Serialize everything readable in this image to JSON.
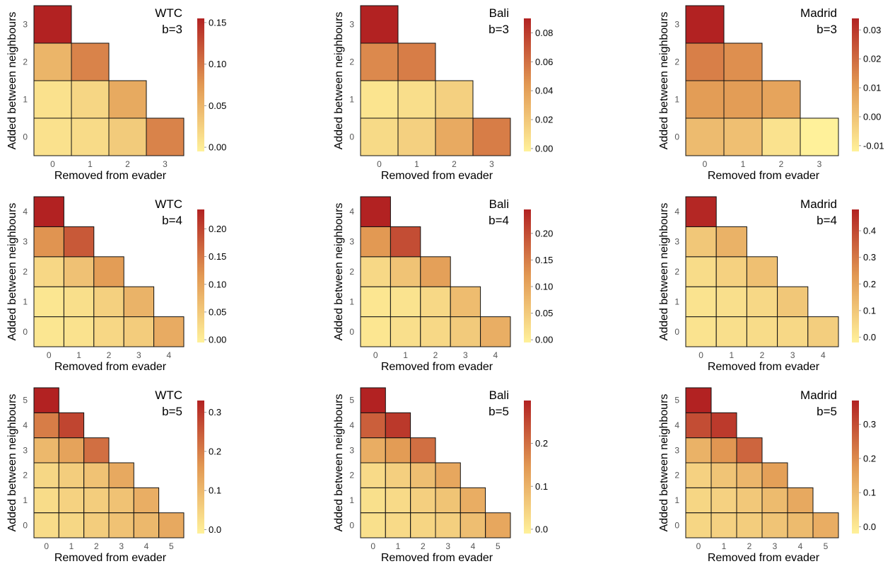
{
  "figure": {
    "xlabel": "Removed from evader",
    "ylabel": "Added between neighbours",
    "colors": {
      "low": "#fff19a",
      "mid": "#e29953",
      "high": "#b22222",
      "cell_border": "#111111"
    }
  },
  "chart_data": [
    {
      "type": "heatmap",
      "network": "WTC",
      "budget_label": "b=3",
      "b": 3,
      "xlabel": "Removed from evader",
      "ylabel": "Added between neighbours",
      "x_ticks": [
        "0",
        "1",
        "2",
        "3"
      ],
      "y_ticks": [
        "0",
        "1",
        "2",
        "3"
      ],
      "colorbar": {
        "min": -0.005,
        "max": 0.155,
        "ticks": [
          0.0,
          0.05,
          0.1,
          0.15
        ],
        "tick_labels": [
          "0.00",
          "0.05",
          "0.10",
          "0.15"
        ]
      },
      "rows": [
        [
          0.01,
          0.015,
          0.03,
          0.09
        ],
        [
          0.01,
          0.02,
          0.06
        ],
        [
          0.05,
          0.09
        ],
        [
          0.155
        ]
      ]
    },
    {
      "type": "heatmap",
      "network": "Bali",
      "budget_label": "b=3",
      "b": 3,
      "xlabel": "Removed from evader",
      "ylabel": "Added between neighbours",
      "x_ticks": [
        "0",
        "1",
        "2",
        "3"
      ],
      "y_ticks": [
        "0",
        "1",
        "2",
        "3"
      ],
      "colorbar": {
        "min": -0.002,
        "max": 0.09,
        "ticks": [
          0.0,
          0.02,
          0.04,
          0.06,
          0.08
        ],
        "tick_labels": [
          "0.00",
          "0.02",
          "0.04",
          "0.06",
          "0.08"
        ]
      },
      "rows": [
        [
          0.01,
          0.015,
          0.035,
          0.055
        ],
        [
          0.005,
          0.008,
          0.015
        ],
        [
          0.05,
          0.055
        ],
        [
          0.09
        ]
      ]
    },
    {
      "type": "heatmap",
      "network": "Madrid",
      "budget_label": "b=3",
      "b": 3,
      "xlabel": "Removed from evader",
      "ylabel": "Added between neighbours",
      "x_ticks": [
        "0",
        "1",
        "2",
        "3"
      ],
      "y_ticks": [
        "0",
        "1",
        "2",
        "3"
      ],
      "colorbar": {
        "min": -0.012,
        "max": 0.034,
        "ticks": [
          -0.01,
          0.0,
          0.01,
          0.02,
          0.03
        ],
        "tick_labels": [
          "-0.01",
          "0.00",
          "0.01",
          "0.02",
          "0.03"
        ]
      },
      "rows": [
        [
          0.002,
          0.001,
          -0.008,
          -0.012
        ],
        [
          0.01,
          0.01,
          0.008
        ],
        [
          0.016,
          0.013
        ],
        [
          0.034
        ]
      ]
    },
    {
      "type": "heatmap",
      "network": "WTC",
      "budget_label": "b=4",
      "b": 4,
      "xlabel": "Removed from evader",
      "ylabel": "Added between neighbours",
      "x_ticks": [
        "0",
        "1",
        "2",
        "3",
        "4"
      ],
      "y_ticks": [
        "0",
        "1",
        "2",
        "3",
        "4"
      ],
      "colorbar": {
        "min": -0.005,
        "max": 0.235,
        "ticks": [
          0.0,
          0.05,
          0.1,
          0.15,
          0.2
        ],
        "tick_labels": [
          "0.00",
          "0.05",
          "0.10",
          "0.15",
          "0.20"
        ]
      },
      "rows": [
        [
          0.01,
          0.015,
          0.03,
          0.045,
          0.09
        ],
        [
          0.01,
          0.02,
          0.04,
          0.08
        ],
        [
          0.03,
          0.06,
          0.11
        ],
        [
          0.12,
          0.18
        ],
        [
          0.235
        ]
      ]
    },
    {
      "type": "heatmap",
      "network": "Bali",
      "budget_label": "b=4",
      "b": 4,
      "xlabel": "Removed from evader",
      "ylabel": "Added between neighbours",
      "x_ticks": [
        "0",
        "1",
        "2",
        "3",
        "4"
      ],
      "y_ticks": [
        "0",
        "1",
        "2",
        "3",
        "4"
      ],
      "colorbar": {
        "min": -0.005,
        "max": 0.245,
        "ticks": [
          0.0,
          0.05,
          0.1,
          0.15,
          0.2
        ],
        "tick_labels": [
          "0.00",
          "0.05",
          "0.10",
          "0.15",
          "0.20"
        ]
      },
      "rows": [
        [
          0.01,
          0.02,
          0.03,
          0.05,
          0.09
        ],
        [
          0.01,
          0.015,
          0.03,
          0.07
        ],
        [
          0.03,
          0.06,
          0.11
        ],
        [
          0.12,
          0.2
        ],
        [
          0.245
        ]
      ]
    },
    {
      "type": "heatmap",
      "network": "Madrid",
      "budget_label": "b=4",
      "b": 4,
      "xlabel": "Removed from evader",
      "ylabel": "Added between neighbours",
      "x_ticks": [
        "0",
        "1",
        "2",
        "3",
        "4"
      ],
      "y_ticks": [
        "0",
        "1",
        "2",
        "3",
        "4"
      ],
      "colorbar": {
        "min": -0.02,
        "max": 0.48,
        "ticks": [
          0.0,
          0.1,
          0.2,
          0.3,
          0.4
        ],
        "tick_labels": [
          "0.0",
          "0.1",
          "0.2",
          "0.3",
          "0.4"
        ]
      },
      "rows": [
        [
          0.02,
          0.03,
          0.04,
          0.05,
          0.08
        ],
        [
          0.02,
          0.03,
          0.05,
          0.1
        ],
        [
          0.04,
          0.07,
          0.12
        ],
        [
          0.1,
          0.16
        ],
        [
          0.47
        ]
      ]
    },
    {
      "type": "heatmap",
      "network": "WTC",
      "budget_label": "b=5",
      "b": 5,
      "xlabel": "Removed from evader",
      "ylabel": "Added between neighbours",
      "x_ticks": [
        "0",
        "1",
        "2",
        "3",
        "4",
        "5"
      ],
      "y_ticks": [
        "0",
        "1",
        "2",
        "3",
        "4",
        "5"
      ],
      "colorbar": {
        "min": -0.01,
        "max": 0.33,
        "ticks": [
          0.0,
          0.1,
          0.2,
          0.3
        ],
        "tick_labels": [
          "0.0",
          "0.1",
          "0.2",
          "0.3"
        ]
      },
      "rows": [
        [
          0.03,
          0.04,
          0.06,
          0.08,
          0.1,
          0.13
        ],
        [
          0.03,
          0.05,
          0.06,
          0.08,
          0.12
        ],
        [
          0.04,
          0.06,
          0.08,
          0.13
        ],
        [
          0.1,
          0.14,
          0.22
        ],
        [
          0.2,
          0.28
        ],
        [
          0.33
        ]
      ]
    },
    {
      "type": "heatmap",
      "network": "Bali",
      "budget_label": "b=5",
      "b": 5,
      "xlabel": "Removed from evader",
      "ylabel": "Added between neighbours",
      "x_ticks": [
        "0",
        "1",
        "2",
        "3",
        "4",
        "5"
      ],
      "y_ticks": [
        "0",
        "1",
        "2",
        "3",
        "4",
        "5"
      ],
      "colorbar": {
        "min": -0.01,
        "max": 0.3,
        "ticks": [
          0.0,
          0.1,
          0.2
        ],
        "tick_labels": [
          "0.0",
          "0.1",
          "0.2"
        ]
      },
      "rows": [
        [
          0.02,
          0.03,
          0.04,
          0.05,
          0.08,
          0.12
        ],
        [
          0.02,
          0.03,
          0.05,
          0.07,
          0.11
        ],
        [
          0.03,
          0.05,
          0.08,
          0.12
        ],
        [
          0.11,
          0.14,
          0.2
        ],
        [
          0.22,
          0.27
        ],
        [
          0.3
        ]
      ]
    },
    {
      "type": "heatmap",
      "network": "Madrid",
      "budget_label": "b=5",
      "b": 5,
      "xlabel": "Removed from evader",
      "ylabel": "Added between neighbours",
      "x_ticks": [
        "0",
        "1",
        "2",
        "3",
        "4",
        "5"
      ],
      "y_ticks": [
        "0",
        "1",
        "2",
        "3",
        "4",
        "5"
      ],
      "colorbar": {
        "min": -0.02,
        "max": 0.37,
        "ticks": [
          0.0,
          0.1,
          0.2,
          0.3
        ],
        "tick_labels": [
          "0.0",
          "0.1",
          "0.2",
          "0.3"
        ]
      },
      "rows": [
        [
          0.04,
          0.05,
          0.06,
          0.08,
          0.1,
          0.13
        ],
        [
          0.04,
          0.05,
          0.07,
          0.1,
          0.14
        ],
        [
          0.05,
          0.08,
          0.11,
          0.16
        ],
        [
          0.12,
          0.18,
          0.26
        ],
        [
          0.3,
          0.33
        ],
        [
          0.37
        ]
      ]
    }
  ]
}
